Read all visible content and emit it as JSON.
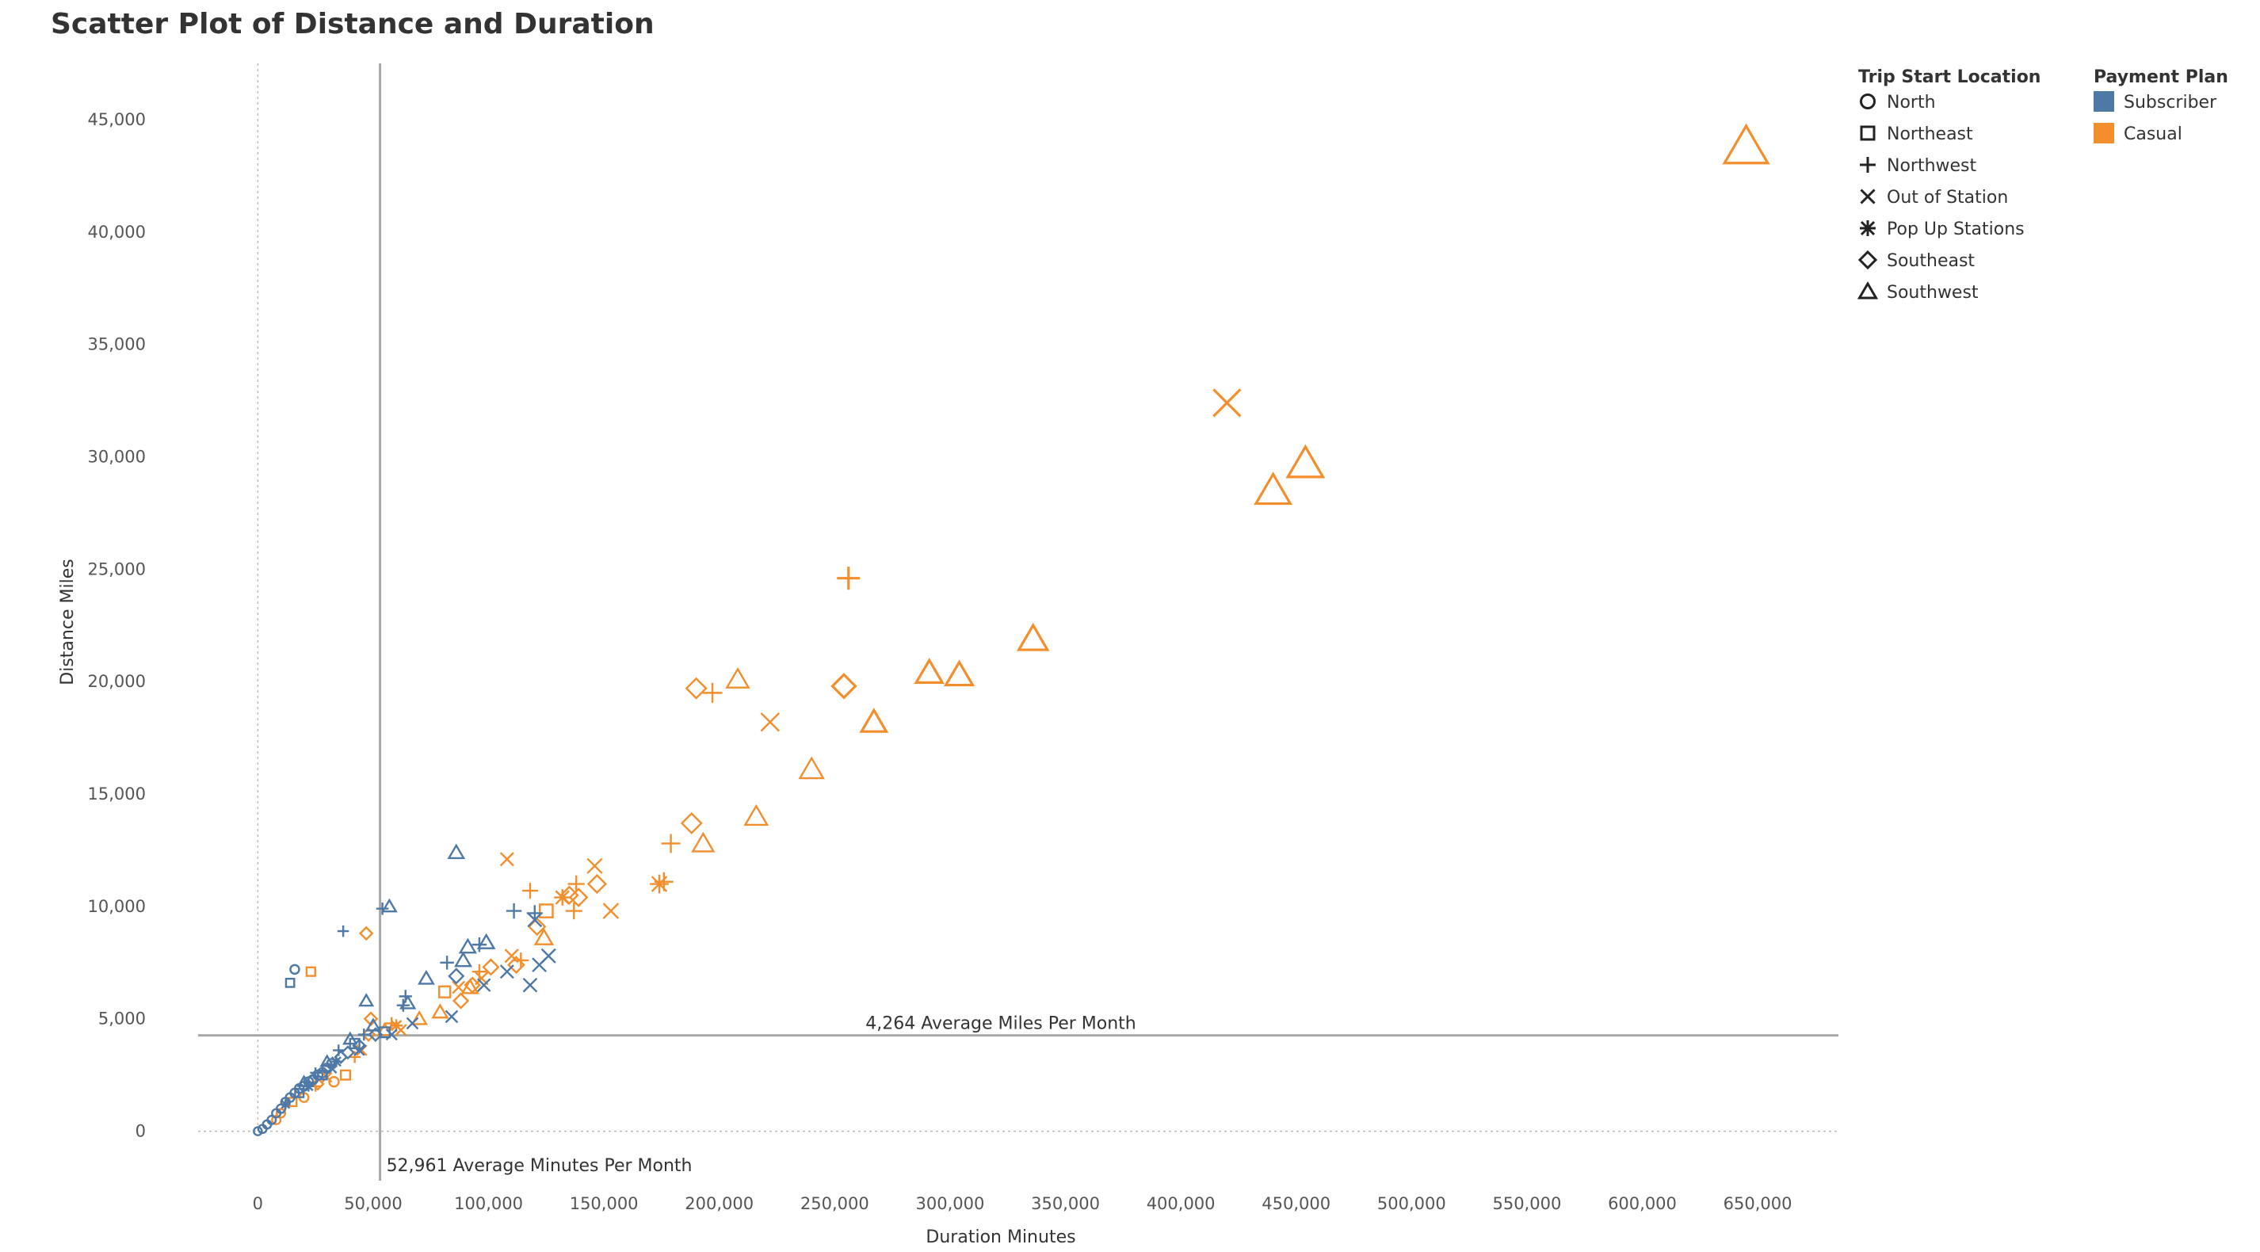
{
  "chart_data": {
    "type": "scatter",
    "title": "Scatter Plot of Distance and Duration",
    "xlabel": "Duration Minutes",
    "ylabel": "Distance Miles",
    "xlim": [
      -30000,
      685000
    ],
    "ylim": [
      -2200,
      47500
    ],
    "x_ticks": [
      0,
      50000,
      100000,
      150000,
      200000,
      250000,
      300000,
      350000,
      400000,
      450000,
      500000,
      550000,
      600000,
      650000
    ],
    "x_tick_labels": [
      "0",
      "50,000",
      "100,000",
      "150,000",
      "200,000",
      "250,000",
      "300,000",
      "350,000",
      "400,000",
      "450,000",
      "500,000",
      "550,000",
      "600,000",
      "650,000"
    ],
    "y_ticks": [
      0,
      5000,
      10000,
      15000,
      20000,
      25000,
      30000,
      35000,
      40000,
      45000
    ],
    "y_tick_labels": [
      "0",
      "5,000",
      "10,000",
      "15,000",
      "20,000",
      "25,000",
      "30,000",
      "35,000",
      "40,000",
      "45,000"
    ],
    "grid": false,
    "reference_lines": [
      {
        "axis": "x",
        "value": 52961,
        "label": "52,961 Average Minutes Per Month"
      },
      {
        "axis": "y",
        "value": 4264,
        "label": "4,264 Average Miles Per Month"
      }
    ],
    "legend_placement": "top-right",
    "shape_legend": {
      "title": "Trip Start Location",
      "items": [
        {
          "key": "north",
          "label": "North",
          "shape": "circle"
        },
        {
          "key": "northeast",
          "label": "Northeast",
          "shape": "square"
        },
        {
          "key": "northwest",
          "label": "Northwest",
          "shape": "plus"
        },
        {
          "key": "out",
          "label": "Out of Station",
          "shape": "cross"
        },
        {
          "key": "popup",
          "label": "Pop Up Stations",
          "shape": "asterisk"
        },
        {
          "key": "southeast",
          "label": "Southeast",
          "shape": "diamond"
        },
        {
          "key": "southwest",
          "label": "Southwest",
          "shape": "triangle"
        }
      ]
    },
    "color_legend": {
      "title": "Payment Plan",
      "items": [
        {
          "key": "subscriber",
          "label": "Subscriber",
          "color": "#4e79a7"
        },
        {
          "key": "casual",
          "label": "Casual",
          "color": "#f28e2b"
        }
      ]
    },
    "series": [
      {
        "plan": "casual",
        "location": "southwest",
        "points": [
          [
            645000,
            43800
          ],
          [
            454000,
            29700
          ],
          [
            440000,
            28500
          ],
          [
            336000,
            21900
          ],
          [
            304000,
            20300
          ],
          [
            291000,
            20400
          ],
          [
            267000,
            18200
          ],
          [
            240000,
            16100
          ],
          [
            216000,
            14000
          ],
          [
            208000,
            20100
          ],
          [
            193000,
            12800
          ],
          [
            124000,
            8600
          ],
          [
            92000,
            6400
          ],
          [
            79000,
            5300
          ],
          [
            70000,
            5000
          ],
          [
            55000,
            4500
          ]
        ]
      },
      {
        "plan": "casual",
        "location": "out",
        "points": [
          [
            420000,
            32400
          ],
          [
            222000,
            18200
          ],
          [
            153000,
            9800
          ],
          [
            146000,
            11800
          ],
          [
            110000,
            7800
          ],
          [
            108000,
            12100
          ],
          [
            97000,
            6800
          ],
          [
            87000,
            6400
          ],
          [
            62000,
            4500
          ],
          [
            45000,
            3600
          ],
          [
            30000,
            2400
          ]
        ]
      },
      {
        "plan": "casual",
        "location": "northwest",
        "points": [
          [
            256000,
            24600
          ],
          [
            197000,
            19500
          ],
          [
            179000,
            12800
          ],
          [
            176000,
            11100
          ],
          [
            138000,
            11000
          ],
          [
            137000,
            9800
          ],
          [
            118000,
            10700
          ],
          [
            114000,
            7600
          ],
          [
            96000,
            7100
          ],
          [
            58000,
            4800
          ],
          [
            42000,
            3300
          ],
          [
            25000,
            2000
          ]
        ]
      },
      {
        "plan": "casual",
        "location": "southeast",
        "points": [
          [
            190000,
            19700
          ],
          [
            254000,
            19800
          ],
          [
            188000,
            13700
          ],
          [
            147000,
            11000
          ],
          [
            139000,
            10400
          ],
          [
            135000,
            10500
          ],
          [
            121000,
            9100
          ],
          [
            112000,
            7400
          ],
          [
            101000,
            7300
          ],
          [
            93000,
            6500
          ],
          [
            88000,
            5800
          ],
          [
            49000,
            5000
          ],
          [
            48000,
            4300
          ],
          [
            47000,
            8800
          ],
          [
            26000,
            2100
          ]
        ]
      },
      {
        "plan": "casual",
        "location": "popup",
        "points": [
          [
            174000,
            11000
          ],
          [
            132000,
            10400
          ],
          [
            60000,
            4700
          ]
        ]
      },
      {
        "plan": "casual",
        "location": "northeast",
        "points": [
          [
            125000,
            9800
          ],
          [
            81000,
            6200
          ],
          [
            23000,
            7100
          ],
          [
            38000,
            2500
          ],
          [
            15000,
            1300
          ]
        ]
      },
      {
        "plan": "casual",
        "location": "north",
        "points": [
          [
            10000,
            800
          ],
          [
            20000,
            1500
          ],
          [
            33000,
            2200
          ],
          [
            8000,
            500
          ]
        ]
      },
      {
        "plan": "subscriber",
        "location": "southwest",
        "points": [
          [
            86000,
            12400
          ],
          [
            57000,
            10000
          ],
          [
            47000,
            5800
          ],
          [
            73000,
            6800
          ],
          [
            89000,
            7600
          ],
          [
            91000,
            8200
          ],
          [
            99000,
            8400
          ],
          [
            65000,
            5700
          ],
          [
            40000,
            4100
          ],
          [
            30000,
            3100
          ],
          [
            50000,
            4700
          ],
          [
            20000,
            2200
          ]
        ]
      },
      {
        "plan": "subscriber",
        "location": "northwest",
        "points": [
          [
            54000,
            9900
          ],
          [
            37000,
            8900
          ],
          [
            111000,
            9800
          ],
          [
            96000,
            8300
          ],
          [
            82000,
            7500
          ],
          [
            64000,
            6000
          ],
          [
            63000,
            5600
          ],
          [
            120000,
            9700
          ],
          [
            46000,
            4300
          ],
          [
            35000,
            3600
          ],
          [
            25000,
            2600
          ]
        ]
      },
      {
        "plan": "subscriber",
        "location": "out",
        "points": [
          [
            120000,
            9400
          ],
          [
            126000,
            7800
          ],
          [
            122000,
            7400
          ],
          [
            118000,
            6500
          ],
          [
            108000,
            7100
          ],
          [
            98000,
            6500
          ],
          [
            84000,
            5100
          ],
          [
            67000,
            4800
          ],
          [
            58000,
            4300
          ],
          [
            44000,
            3600
          ],
          [
            32000,
            2800
          ]
        ]
      },
      {
        "plan": "subscriber",
        "location": "northeast",
        "points": [
          [
            14000,
            6600
          ],
          [
            42000,
            3900
          ],
          [
            28000,
            2500
          ],
          [
            18000,
            1700
          ],
          [
            55000,
            4400
          ]
        ]
      },
      {
        "plan": "subscriber",
        "location": "north",
        "points": [
          [
            16000,
            7200
          ],
          [
            0,
            0
          ],
          [
            2000,
            100
          ],
          [
            4000,
            300
          ],
          [
            6000,
            500
          ],
          [
            8000,
            800
          ],
          [
            10000,
            1000
          ],
          [
            12000,
            1300
          ],
          [
            14000,
            1500
          ],
          [
            16000,
            1700
          ],
          [
            18000,
            1900
          ],
          [
            20000,
            2000
          ],
          [
            22000,
            2200
          ],
          [
            24000,
            2300
          ],
          [
            26000,
            2500
          ],
          [
            28000,
            2600
          ],
          [
            30000,
            2800
          ],
          [
            32000,
            3000
          ]
        ]
      },
      {
        "plan": "subscriber",
        "location": "southeast",
        "points": [
          [
            36000,
            3300
          ],
          [
            44000,
            3800
          ],
          [
            51000,
            4300
          ],
          [
            86000,
            6900
          ],
          [
            39000,
            3500
          ],
          [
            24000,
            2300
          ]
        ]
      },
      {
        "plan": "subscriber",
        "location": "popup",
        "points": [
          [
            34000,
            3100
          ],
          [
            22000,
            2000
          ],
          [
            12000,
            1200
          ]
        ]
      }
    ]
  }
}
